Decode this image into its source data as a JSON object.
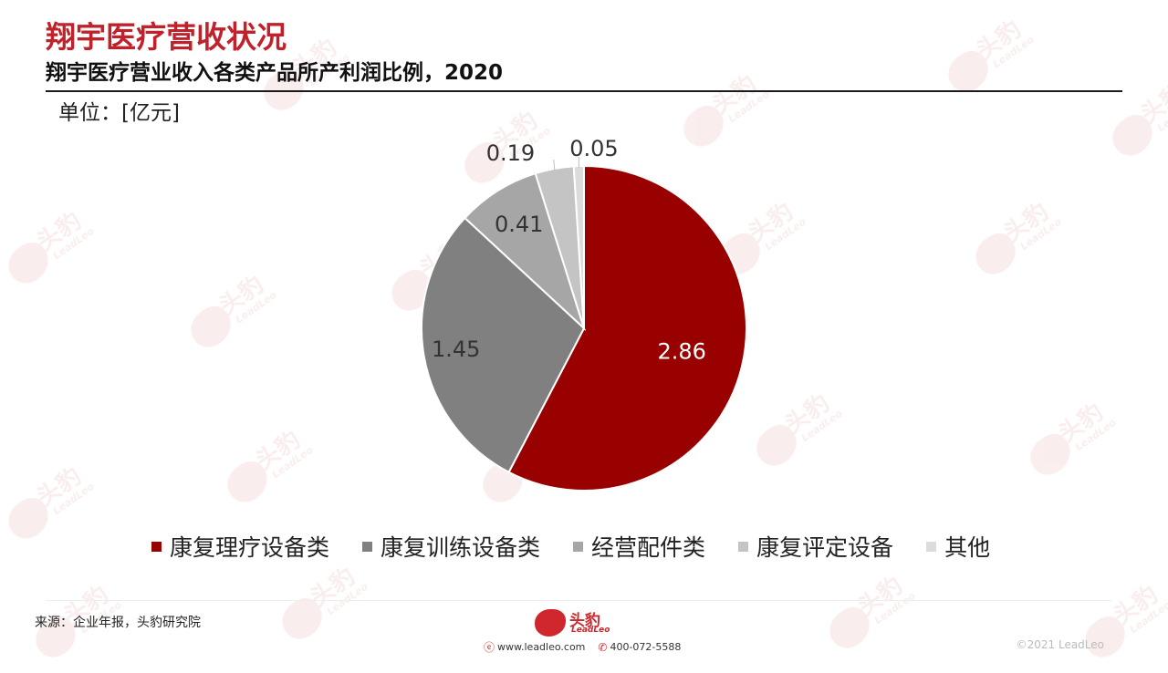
{
  "header": {
    "title": "翔宇医疗营收状况",
    "subtitle": "翔宇医疗营业收入各类产品所产利润比例，2020",
    "unit": "单位：[亿元]"
  },
  "chart_data": {
    "type": "pie",
    "categories": [
      "康复理疗设备类",
      "康复训练设备类",
      "经营配件类",
      "康复评定设备",
      "其他"
    ],
    "values": [
      2.86,
      1.45,
      0.41,
      0.19,
      0.05
    ],
    "data_labels": [
      "2.86",
      "1.45",
      "0.41",
      "0.19",
      "0.05"
    ],
    "colors": [
      "#990000",
      "#808080",
      "#a6a6a6",
      "#c4c4c4",
      "#dcdcdc"
    ],
    "start_angle_deg": 0,
    "direction": "clockwise",
    "legend_position": "bottom"
  },
  "footer": {
    "source": "来源：企业年报，头豹研究院",
    "logo_text": "头豹",
    "logo_sub": "LeadLeo",
    "website": "www.leadleo.com",
    "phone": "400-072-5588",
    "copyright": "©2021 LeadLeo"
  },
  "watermark": {
    "text": "头豹",
    "sub": "LeadLeo"
  }
}
